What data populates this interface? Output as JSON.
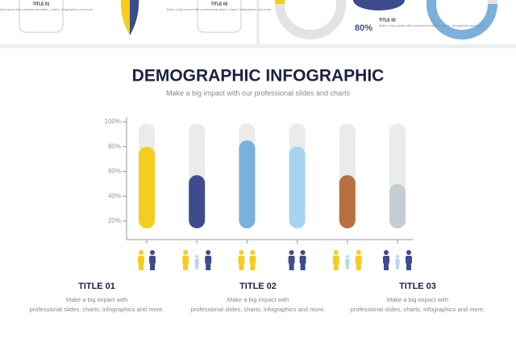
{
  "top_strip": {
    "left_title": "TITLE 01",
    "left_text": "Make a big impact with professional slides, charts, infographics and more.",
    "mid_title": "TITLE 02",
    "mid_text": "Make a big impact with professional slides, charts, infographics and more.",
    "percent": "80%",
    "right_title": "TITLE 02",
    "right_text": "Make a big impact with professional slides, charts, infographics and more."
  },
  "chart_data": {
    "type": "bar",
    "title": "DEMOGRAPHIC INFOGRAPHIC",
    "subtitle": "Make a big impact with our professional slides and charts",
    "values": [
      80,
      57,
      85,
      80,
      57,
      50
    ],
    "colors": [
      "#f5cd1e",
      "#3f4b8f",
      "#7ab0dc",
      "#a7d3f0",
      "#b9703f",
      "#c5ccd3"
    ],
    "ylim": [
      5,
      100
    ],
    "yticks": [
      {
        "value": 20,
        "label": "20%"
      },
      {
        "value": 40,
        "label": "40%"
      },
      {
        "value": 60,
        "label": "60%"
      },
      {
        "value": 80,
        "label": "80%"
      },
      {
        "value": 100,
        "label": "100%"
      }
    ]
  },
  "footer": [
    {
      "title": "TITLE 01",
      "text": "Make a big impact with professional slides, charts, infographics and more."
    },
    {
      "title": "TITLE 02",
      "text": "Make a big impact with professional slides, charts, infographics and more."
    },
    {
      "title": "TITLE 03",
      "text": "Make a big impact with professional slides, charts, infographics and more."
    }
  ]
}
